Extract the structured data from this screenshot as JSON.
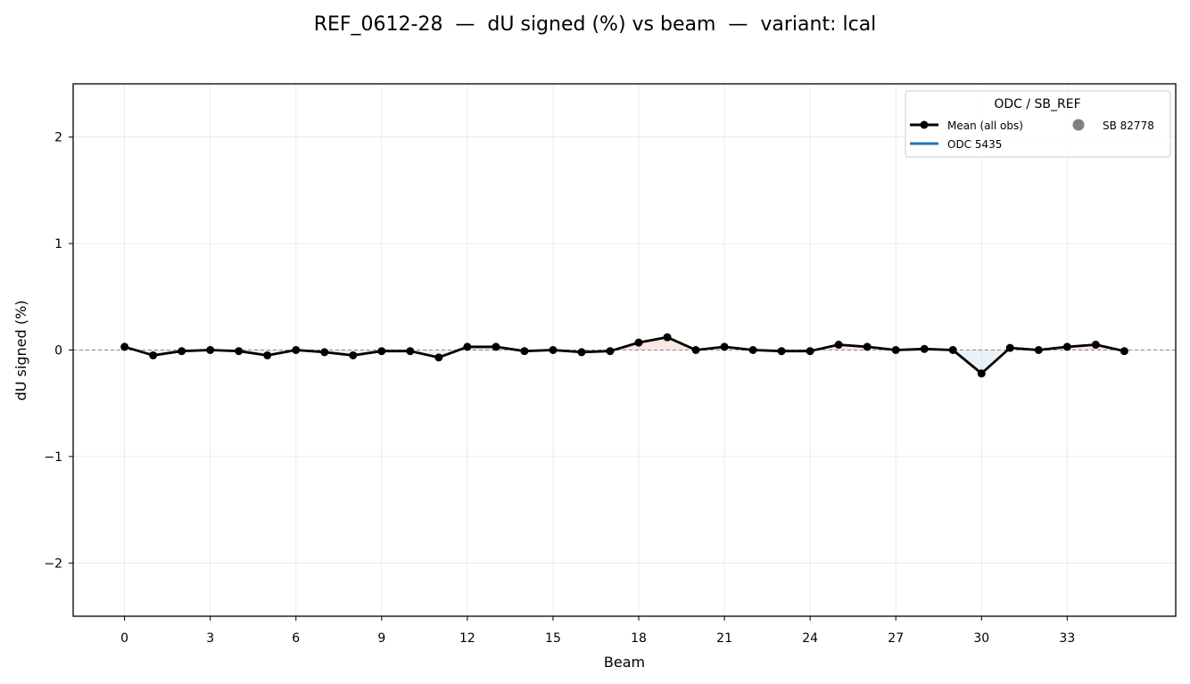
{
  "chart_data": {
    "type": "line",
    "title": "REF_0612-28  —  dU signed (%) vs beam  —  variant: lcal",
    "xlabel": "Beam",
    "ylabel": "dU signed (%)",
    "xlim": [
      -1.8,
      36.8
    ],
    "ylim": [
      -2.5,
      2.5
    ],
    "xticks": [
      0,
      3,
      6,
      9,
      12,
      15,
      18,
      21,
      24,
      27,
      30,
      33
    ],
    "yticks": [
      -2,
      -1,
      0,
      1,
      2
    ],
    "ytick_labels": [
      "−2",
      "−1",
      "0",
      "1",
      "2"
    ],
    "grid": true,
    "zero_line": true,
    "legend": {
      "title": "ODC / SB_REF",
      "placement": "top-right",
      "entries": [
        {
          "label": "Mean (all obs)",
          "marker": "line-dot",
          "color": "#000000"
        },
        {
          "label": "ODC 5435",
          "marker": "line",
          "color": "#1f77b4"
        },
        {
          "label": "SB 82778",
          "marker": "dot",
          "color": "#808080"
        }
      ]
    },
    "series": [
      {
        "name": "Mean (all obs)",
        "color": "#000000",
        "x": [
          0,
          1,
          2,
          3,
          4,
          5,
          6,
          7,
          8,
          9,
          10,
          11,
          12,
          13,
          14,
          15,
          16,
          17,
          18,
          19,
          20,
          21,
          22,
          23,
          24,
          25,
          26,
          27,
          28,
          29,
          30,
          31,
          32,
          33,
          34,
          35
        ],
        "y": [
          0.03,
          -0.05,
          -0.01,
          0.0,
          -0.01,
          -0.05,
          0.0,
          -0.02,
          -0.05,
          -0.01,
          -0.01,
          -0.07,
          0.03,
          0.03,
          -0.01,
          0.0,
          -0.02,
          -0.01,
          0.07,
          0.12,
          0.0,
          0.03,
          0.0,
          -0.01,
          -0.01,
          0.05,
          0.03,
          0.0,
          0.01,
          0.0,
          -0.22,
          0.02,
          0.0,
          0.03,
          0.05,
          -0.01
        ]
      }
    ]
  }
}
